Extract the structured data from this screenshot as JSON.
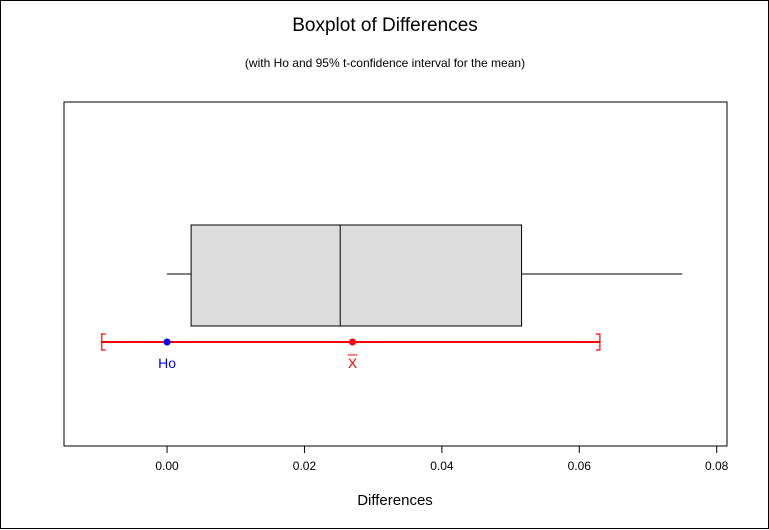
{
  "chart_data": {
    "type": "boxplot",
    "title": "Boxplot of Differences",
    "subtitle": "(with Ho and 95% t-confidence interval for the mean)",
    "xlabel": "Differences",
    "xlim": [
      -0.015,
      0.0815
    ],
    "x_ticks": [
      0.0,
      0.02,
      0.04,
      0.06,
      0.08
    ],
    "x_tick_labels": [
      "0.00",
      "0.02",
      "0.04",
      "0.06",
      "0.08"
    ],
    "grid": false,
    "box": {
      "whisker_low": 0.0,
      "q1": 0.0035,
      "median": 0.0252,
      "q3": 0.0516,
      "whisker_high": 0.075
    },
    "confidence_interval": {
      "low": -0.0095,
      "high": 0.063,
      "mean": 0.027,
      "mean_label": "X",
      "color": "#ff0000"
    },
    "hypothesis": {
      "value": 0.0,
      "label": "Ho",
      "color": "#0000ff"
    },
    "colors": {
      "box_fill": "#dcdcdc",
      "outline": "#000000"
    }
  }
}
